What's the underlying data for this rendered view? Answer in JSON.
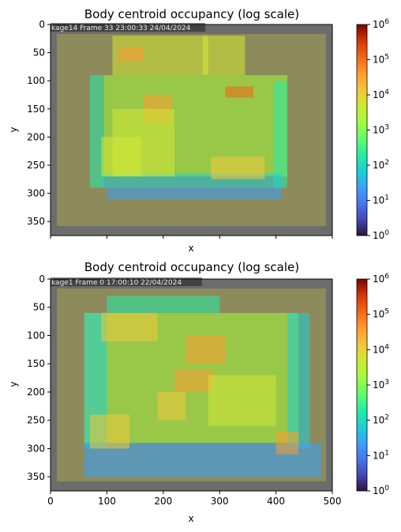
{
  "chart_data": [
    {
      "type": "heatmap",
      "title": "Body centroid occupancy (log scale)",
      "xlabel": "x",
      "ylabel": "y",
      "xlim": [
        0,
        500
      ],
      "ylim": [
        375,
        0
      ],
      "xticks": [],
      "yticks": [
        0,
        50,
        100,
        150,
        200,
        250,
        300,
        350
      ],
      "overlay_text": "kage14 Frame 33 23:00:33 24/04/2024",
      "colorbar": {
        "scale": "log",
        "cmap": "turbo",
        "ticks": [
          {
            "value": 1,
            "exp": "0"
          },
          {
            "value": 10,
            "exp": "1"
          },
          {
            "value": 100,
            "exp": "2"
          },
          {
            "value": 1000,
            "exp": "3"
          },
          {
            "value": 10000,
            "exp": "4"
          },
          {
            "value": 100000,
            "exp": "5"
          },
          {
            "value": 1000000,
            "exp": "6"
          }
        ]
      },
      "heat_regions": [
        {
          "x": [
            95,
            420
          ],
          "y": [
            90,
            270
          ],
          "log10": 3.1
        },
        {
          "x": [
            70,
            95
          ],
          "y": [
            90,
            290
          ],
          "log10": 2.3
        },
        {
          "x": [
            395,
            420
          ],
          "y": [
            100,
            290
          ],
          "log10": 2.3
        },
        {
          "x": [
            90,
            410
          ],
          "y": [
            265,
            290
          ],
          "log10": 2.0
        },
        {
          "x": [
            100,
            410
          ],
          "y": [
            290,
            310
          ],
          "log10": 1.2
        },
        {
          "x": [
            110,
            280
          ],
          "y": [
            20,
            90
          ],
          "log10": 3.8
        },
        {
          "x": [
            270,
            345
          ],
          "y": [
            20,
            90
          ],
          "log10": 3.8
        },
        {
          "x": [
            120,
            165
          ],
          "y": [
            40,
            65
          ],
          "log10": 4.5
        },
        {
          "x": [
            165,
            215
          ],
          "y": [
            125,
            175
          ],
          "log10": 4.5
        },
        {
          "x": [
            310,
            360
          ],
          "y": [
            110,
            130
          ],
          "log10": 5.2
        },
        {
          "x": [
            90,
            160
          ],
          "y": [
            200,
            270
          ],
          "log10": 3.8
        },
        {
          "x": [
            285,
            380
          ],
          "y": [
            235,
            275
          ],
          "log10": 4.0
        },
        {
          "x": [
            110,
            220
          ],
          "y": [
            150,
            270
          ],
          "log10": 3.6
        }
      ]
    },
    {
      "type": "heatmap",
      "title": "Body centroid occupancy (log scale)",
      "xlabel": "x",
      "ylabel": "y",
      "xlim": [
        0,
        500
      ],
      "ylim": [
        375,
        0
      ],
      "xticks": [
        0,
        100,
        200,
        300,
        400,
        500
      ],
      "yticks": [
        0,
        50,
        100,
        150,
        200,
        250,
        300,
        350
      ],
      "overlay_text": "kage1 Frame 0 17:00:10 22/04/2024",
      "colorbar": {
        "scale": "log",
        "cmap": "turbo",
        "ticks": [
          {
            "value": 1,
            "exp": "0"
          },
          {
            "value": 10,
            "exp": "1"
          },
          {
            "value": 100,
            "exp": "2"
          },
          {
            "value": 1000,
            "exp": "3"
          },
          {
            "value": 10000,
            "exp": "4"
          },
          {
            "value": 100000,
            "exp": "5"
          },
          {
            "value": 1000000,
            "exp": "6"
          }
        ]
      },
      "heat_regions": [
        {
          "x": [
            60,
            440
          ],
          "y": [
            60,
            290
          ],
          "log10": 3.0
        },
        {
          "x": [
            100,
            300
          ],
          "y": [
            30,
            60
          ],
          "log10": 2.5
        },
        {
          "x": [
            60,
            100
          ],
          "y": [
            60,
            300
          ],
          "log10": 2.0
        },
        {
          "x": [
            420,
            460
          ],
          "y": [
            60,
            300
          ],
          "log10": 1.8
        },
        {
          "x": [
            60,
            480
          ],
          "y": [
            290,
            350
          ],
          "log10": 1.5
        },
        {
          "x": [
            90,
            190
          ],
          "y": [
            60,
            110
          ],
          "log10": 4.0
        },
        {
          "x": [
            240,
            310
          ],
          "y": [
            100,
            150
          ],
          "log10": 4.5
        },
        {
          "x": [
            220,
            290
          ],
          "y": [
            160,
            200
          ],
          "log10": 4.6
        },
        {
          "x": [
            190,
            240
          ],
          "y": [
            200,
            250
          ],
          "log10": 4.2
        },
        {
          "x": [
            70,
            140
          ],
          "y": [
            240,
            300
          ],
          "log10": 4.3
        },
        {
          "x": [
            280,
            400
          ],
          "y": [
            170,
            260
          ],
          "log10": 3.6
        },
        {
          "x": [
            400,
            440
          ],
          "y": [
            270,
            310
          ],
          "log10": 4.6
        }
      ]
    }
  ]
}
